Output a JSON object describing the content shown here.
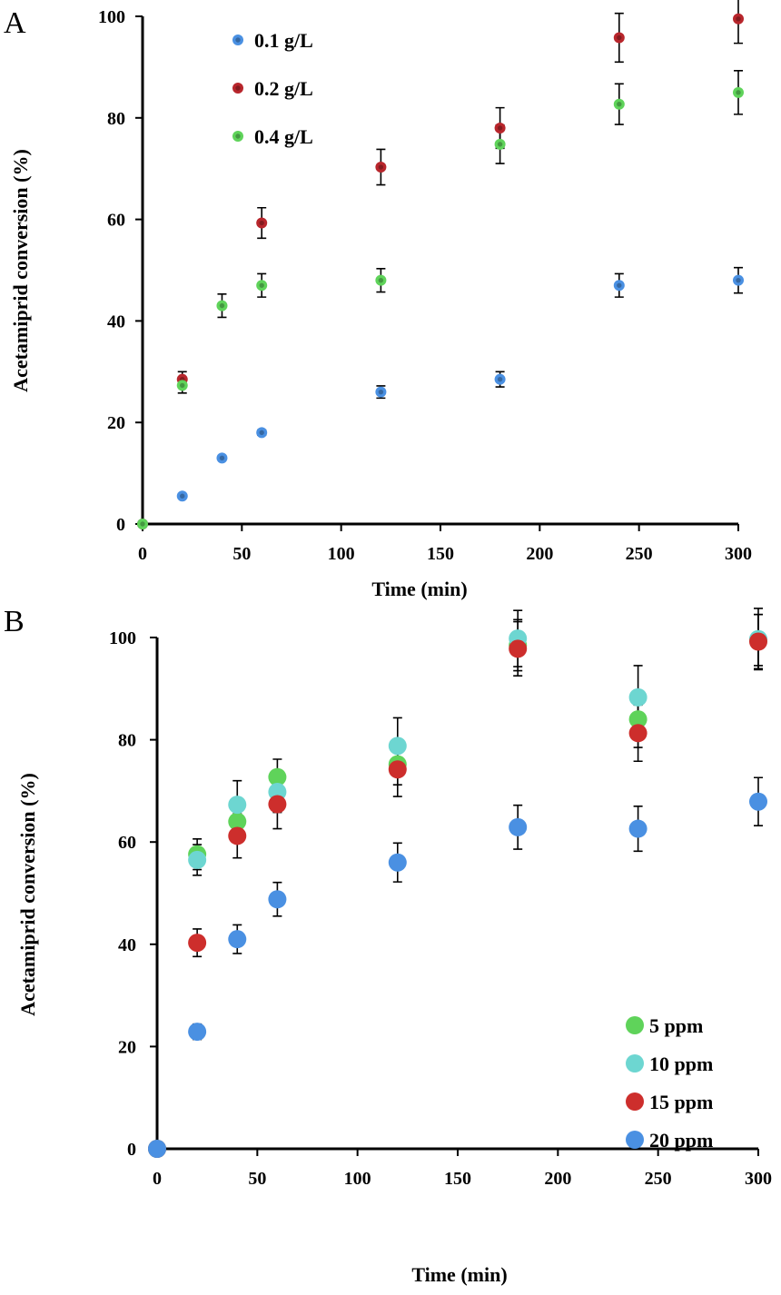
{
  "chart_data": [
    {
      "panel": "A",
      "type": "scatter",
      "xlabel": "Time (min)",
      "ylabel": "Acetamiprid conversion (%)",
      "xlim": [
        0,
        300
      ],
      "ylim": [
        0,
        100
      ],
      "xticks": [
        0,
        50,
        100,
        150,
        200,
        250,
        300
      ],
      "yticks": [
        0,
        20,
        40,
        60,
        80,
        100
      ],
      "grid": false,
      "legend_position": "top-left",
      "series": [
        {
          "name": "0.1 g/L",
          "color": "#4a90e2",
          "x": [
            0,
            20,
            40,
            60,
            120,
            180,
            240,
            300
          ],
          "y": [
            0,
            5.5,
            13,
            18,
            26,
            28.5,
            47,
            48
          ],
          "err": [
            0,
            0,
            0,
            0.5,
            1.2,
            1.5,
            2.3,
            2.5
          ]
        },
        {
          "name": "0.2 g/L",
          "color": "#b8262c",
          "x": [
            0,
            20,
            60,
            120,
            180,
            240,
            300
          ],
          "y": [
            0,
            28.5,
            59.3,
            70.3,
            78,
            95.8,
            99.5
          ],
          "err": [
            0,
            1.5,
            3,
            3.5,
            4,
            4.8,
            4.8
          ]
        },
        {
          "name": "0.4 g/L",
          "color": "#5fd35a",
          "x": [
            0,
            20,
            40,
            60,
            120,
            180,
            240,
            300
          ],
          "y": [
            0,
            27.3,
            43,
            47,
            48,
            74.8,
            82.7,
            85
          ],
          "err": [
            0,
            1.5,
            2.3,
            2.3,
            2.3,
            3.8,
            4,
            4.3
          ]
        }
      ]
    },
    {
      "panel": "B",
      "type": "scatter",
      "xlabel": "Time (min)",
      "ylabel": "Acetamiprid conversion (%)",
      "xlim": [
        0,
        300
      ],
      "ylim": [
        0,
        100
      ],
      "xticks": [
        0,
        50,
        100,
        150,
        200,
        250,
        300
      ],
      "yticks": [
        0,
        20,
        40,
        60,
        80,
        100
      ],
      "grid": false,
      "legend_position": "bottom-right",
      "series": [
        {
          "name": "5 ppm",
          "color": "#5fd35a",
          "x": [
            0,
            20,
            40,
            60,
            120,
            180,
            240,
            300
          ],
          "y": [
            0,
            57.6,
            64,
            72.7,
            75.2,
            98.5,
            84,
            99.5
          ],
          "err": [
            0,
            3,
            3.5,
            3.5,
            4,
            5,
            5.5,
            5
          ]
        },
        {
          "name": "10 ppm",
          "color": "#6dd6d1",
          "x": [
            0,
            20,
            40,
            60,
            120,
            180,
            240,
            300
          ],
          "y": [
            0,
            56.5,
            67.3,
            69.8,
            78.8,
            99.8,
            88.3,
            99.7
          ],
          "err": [
            0,
            3,
            4.7,
            4,
            5.5,
            5.5,
            6.2,
            6
          ]
        },
        {
          "name": "15 ppm",
          "color": "#cd2e2c",
          "x": [
            0,
            20,
            40,
            60,
            120,
            180,
            240,
            300
          ],
          "y": [
            0,
            40.3,
            61.2,
            67.4,
            74.2,
            97.8,
            81.3,
            99.2
          ],
          "err": [
            0,
            2.7,
            4.3,
            4.8,
            5.3,
            5.3,
            5.5,
            5.3
          ]
        },
        {
          "name": "20 ppm",
          "color": "#4a90e2",
          "x": [
            0,
            20,
            40,
            60,
            120,
            180,
            240,
            300
          ],
          "y": [
            0,
            22.9,
            41,
            48.8,
            56,
            62.9,
            62.6,
            67.9
          ],
          "err": [
            0,
            1.5,
            2.8,
            3.3,
            3.8,
            4.3,
            4.4,
            4.7
          ]
        }
      ]
    }
  ]
}
